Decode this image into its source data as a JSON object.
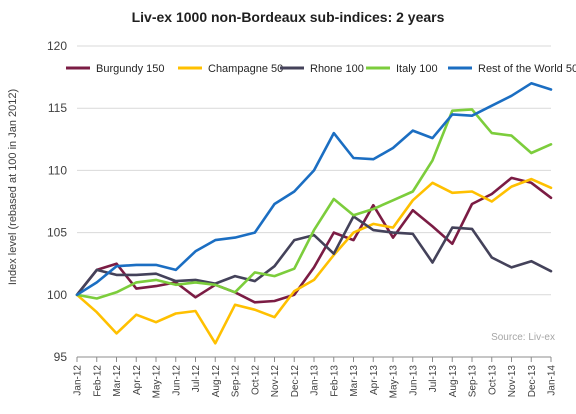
{
  "chart_data": {
    "type": "line",
    "title": "Liv-ex 1000 non-Bordeaux sub-indices: 2 years",
    "xlabel": "",
    "ylabel": "Index level (rebased at 100 in Jan 2012)",
    "ylim": [
      95,
      120
    ],
    "yticks": [
      95,
      100,
      105,
      110,
      115,
      120
    ],
    "grid": true,
    "legend_position": "top",
    "source_note": "Source: Liv-ex",
    "categories": [
      "Jan-12",
      "Feb-12",
      "Mar-12",
      "Apr-12",
      "May-12",
      "Jun-12",
      "Jul-12",
      "Aug-12",
      "Sep-12",
      "Oct-12",
      "Nov-12",
      "Dec-12",
      "Jan-13",
      "Feb-13",
      "Mar-13",
      "Apr-13",
      "May-13",
      "Jun-13",
      "Jul-13",
      "Aug-13",
      "Sep-13",
      "Oct-13",
      "Nov-13",
      "Dec-13",
      "Jan-14"
    ],
    "series": [
      {
        "name": "Burgundy 150",
        "color": "#7b1c44",
        "values": [
          100,
          102.0,
          102.5,
          100.5,
          100.7,
          101.0,
          99.8,
          100.8,
          100.2,
          99.4,
          99.5,
          100.0,
          102.2,
          105.0,
          104.4,
          107.2,
          104.6,
          106.8,
          105.5,
          104.1,
          107.3,
          108.1,
          109.4,
          109.0,
          107.8
        ]
      },
      {
        "name": "Champagne 50",
        "color": "#ffc000",
        "values": [
          100,
          98.6,
          96.9,
          98.4,
          97.8,
          98.5,
          98.7,
          96.1,
          99.2,
          98.8,
          98.2,
          100.3,
          101.2,
          103.2,
          105.0,
          105.7,
          105.4,
          107.6,
          109.0,
          108.2,
          108.3,
          107.5,
          108.7,
          109.3,
          108.6
        ]
      },
      {
        "name": "Rhone 100",
        "color": "#44425a",
        "values": [
          100,
          102.0,
          101.6,
          101.6,
          101.7,
          101.1,
          101.2,
          100.9,
          101.5,
          101.1,
          102.3,
          104.4,
          104.8,
          103.3,
          106.3,
          105.2,
          105.0,
          104.9,
          102.6,
          105.4,
          105.3,
          103.0,
          102.2,
          102.7,
          101.9
        ]
      },
      {
        "name": "Italy 100",
        "color": "#7ccd3c",
        "values": [
          100,
          99.7,
          100.2,
          101.0,
          101.2,
          100.8,
          101.0,
          100.8,
          100.2,
          101.8,
          101.5,
          102.1,
          105.2,
          107.7,
          106.4,
          106.9,
          107.6,
          108.3,
          110.8,
          114.8,
          114.9,
          113.0,
          112.8,
          111.4,
          112.1
        ]
      },
      {
        "name": "Rest of the World 50",
        "color": "#1b6ec2",
        "values": [
          100,
          101.0,
          102.3,
          102.4,
          102.4,
          102.0,
          103.5,
          104.4,
          104.6,
          105.0,
          107.3,
          108.3,
          110.0,
          113.0,
          111.0,
          110.9,
          111.8,
          113.2,
          112.6,
          114.5,
          114.4,
          115.2,
          116.0,
          117.0,
          116.5
        ]
      }
    ]
  }
}
